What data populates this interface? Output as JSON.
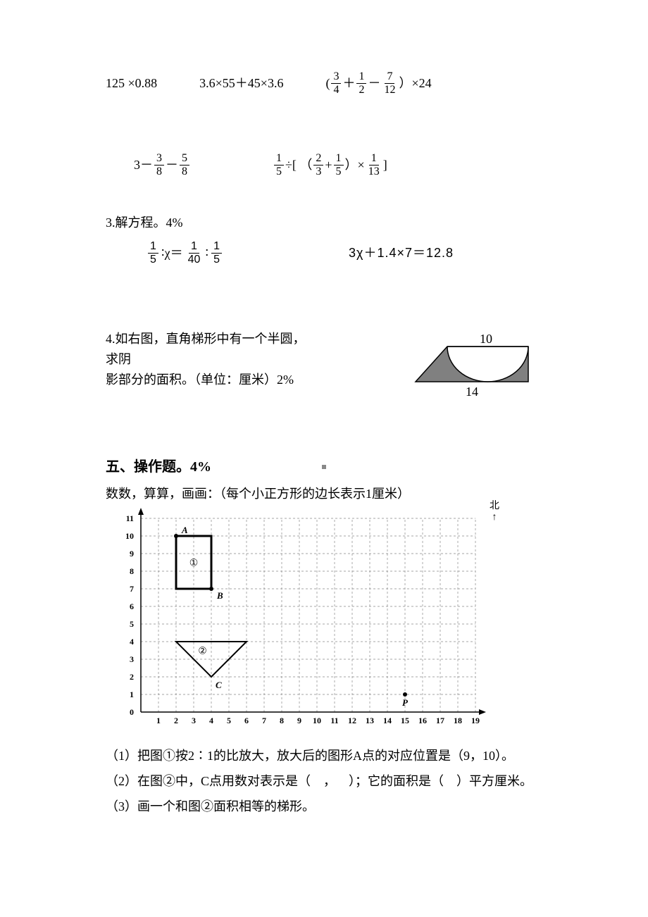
{
  "row1": {
    "e1": "125 ×0.88",
    "e2": "3.6×55＋45×3.6",
    "e3_prefix": "(",
    "e3_f1_n": "3",
    "e3_f1_d": "4",
    "e3_op1": "＋",
    "e3_f2_n": "1",
    "e3_f2_d": "2",
    "e3_op2": "－",
    "e3_f3_n": "7",
    "e3_f3_d": "12",
    "e3_suffix": "）×24"
  },
  "row2": {
    "e1_prefix": "3－",
    "e1_f1_n": "3",
    "e1_f1_d": "8",
    "e1_mid": "－",
    "e1_f2_n": "5",
    "e1_f2_d": "8",
    "e2_f1_n": "1",
    "e2_f1_d": "5",
    "e2_a": "÷[ （",
    "e2_f2_n": "2",
    "e2_f2_d": "3",
    "e2_b": "+",
    "e2_f3_n": "1",
    "e2_f3_d": "5",
    "e2_c": "）×",
    "e2_f4_n": "1",
    "e2_f4_d": "13",
    "e2_d": " ]"
  },
  "q3": {
    "title": "3.解方程。4%",
    "eq1_f1_n": "1",
    "eq1_f1_d": "5",
    "eq1_mid": "∶χ＝",
    "eq1_f2_n": "1",
    "eq1_f2_d": "40",
    "eq1_colon": "∶",
    "eq1_f3_n": "1",
    "eq1_f3_d": "5",
    "eq2": "3χ＋1.4×7＝12.8"
  },
  "q4": {
    "line1": "4.如右图，直角梯形中有一个半圆，求阴",
    "line2": "影部分的面积。（单位：厘米）2%",
    "top_label": "10",
    "bottom_label": "14"
  },
  "section5": {
    "title": "五、操作题。4%",
    "intro": "数数，算算，画画：（每个小正方形的边长表示1厘米）",
    "compass": "北",
    "labels": {
      "A": "A",
      "B": "B",
      "C": "C",
      "P": "P",
      "one": "①",
      "two": "②"
    },
    "xticks": [
      "1",
      "2",
      "3",
      "4",
      "5",
      "6",
      "7",
      "8",
      "9",
      "10",
      "11",
      "12",
      "13",
      "14",
      "15",
      "16",
      "17",
      "18",
      "19"
    ],
    "yticks": [
      "0",
      "1",
      "2",
      "3",
      "4",
      "5",
      "6",
      "7",
      "8",
      "9",
      "10",
      "11"
    ],
    "grid": {
      "cols": 19,
      "rows": 11,
      "square_labels": {
        "A_pos": [
          2,
          10
        ],
        "B_pos": [
          4,
          7
        ]
      },
      "triangle": {
        "pts": [
          [
            2,
            4
          ],
          [
            6,
            4
          ],
          [
            4,
            2
          ]
        ]
      },
      "P_pos": [
        15,
        1
      ]
    },
    "sub1": "（1）把图①按2∶1的比放大，放大后的图形A点的对应位置是（9，10）。",
    "sub2": "（2）在图②中，C点用数对表示是（ ， ）；它的面积是（ ）平方厘米。",
    "sub3": "（3）画一个和图②面积相等的梯形。"
  },
  "colors": {
    "text": "#000000",
    "grid_dash": "#888888",
    "shade": "#808080"
  }
}
